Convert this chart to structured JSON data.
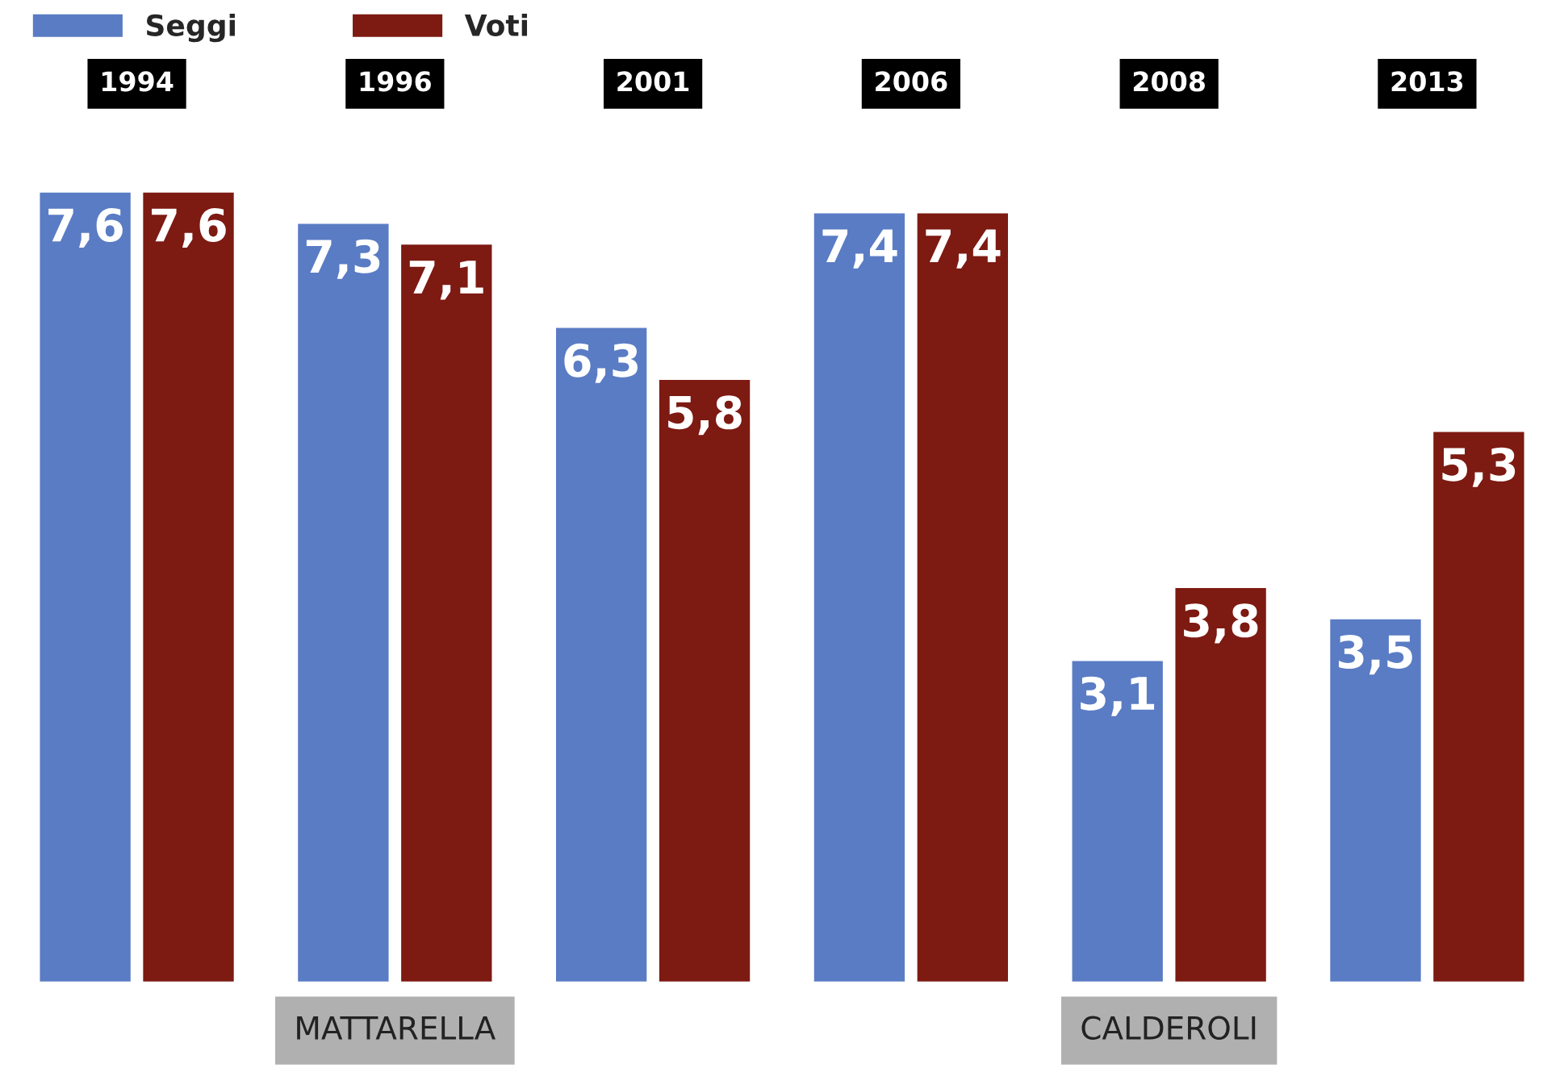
{
  "chart_data": {
    "type": "bar",
    "categories": [
      "1994",
      "1996",
      "2001",
      "2006",
      "2008",
      "2013"
    ],
    "series": [
      {
        "name": "Seggi",
        "color": "#5a7cc4",
        "values": [
          7.6,
          7.3,
          6.3,
          7.4,
          3.1,
          3.5
        ],
        "value_labels": [
          "7,6",
          "7,3",
          "6,3",
          "7,4",
          "3,1",
          "3,5"
        ]
      },
      {
        "name": "Voti",
        "color": "#7d1a12",
        "values": [
          7.6,
          7.1,
          5.8,
          7.4,
          3.8,
          5.3
        ],
        "value_labels": [
          "7,6",
          "7,1",
          "5,8",
          "7,4",
          "3,8",
          "5,3"
        ]
      }
    ],
    "annotations": [
      "MATTARELLA",
      "CALDEROLI"
    ],
    "legend": "top left",
    "tick_labels": "x",
    "grid": false
  }
}
